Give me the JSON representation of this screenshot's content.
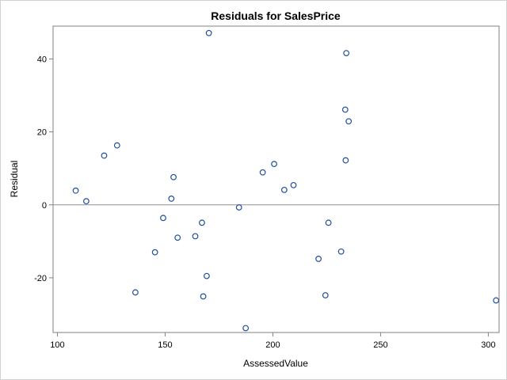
{
  "chart_data": {
    "type": "scatter",
    "title": "Residuals for SalesPrice",
    "xlabel": "AssessedValue",
    "ylabel": "Residual",
    "xlim": [
      98,
      305
    ],
    "ylim": [
      -35,
      49
    ],
    "xticks": [
      100,
      150,
      200,
      250,
      300
    ],
    "yticks": [
      -20,
      0,
      20,
      40
    ],
    "reference_line_y": 0,
    "grid": false,
    "colors": {
      "marker": "#1f4e9c",
      "reference": "#909090",
      "axis": "#808080"
    },
    "points": [
      {
        "x": 108.5,
        "y": 3.9
      },
      {
        "x": 113.4,
        "y": 1.0
      },
      {
        "x": 121.7,
        "y": 13.5
      },
      {
        "x": 127.7,
        "y": 16.3
      },
      {
        "x": 136.2,
        "y": -24.0
      },
      {
        "x": 145.3,
        "y": -13.0
      },
      {
        "x": 149.1,
        "y": -3.6
      },
      {
        "x": 152.9,
        "y": 1.7
      },
      {
        "x": 153.9,
        "y": 7.6
      },
      {
        "x": 155.8,
        "y": -9.0
      },
      {
        "x": 164.0,
        "y": -8.6
      },
      {
        "x": 167.1,
        "y": -4.9
      },
      {
        "x": 167.7,
        "y": -25.1
      },
      {
        "x": 169.3,
        "y": -19.5
      },
      {
        "x": 170.3,
        "y": 47.1
      },
      {
        "x": 184.3,
        "y": -0.7
      },
      {
        "x": 187.4,
        "y": -33.8
      },
      {
        "x": 195.3,
        "y": 8.9
      },
      {
        "x": 200.6,
        "y": 11.2
      },
      {
        "x": 205.3,
        "y": 4.1
      },
      {
        "x": 209.6,
        "y": 5.4
      },
      {
        "x": 221.2,
        "y": -14.8
      },
      {
        "x": 224.4,
        "y": -24.8
      },
      {
        "x": 225.8,
        "y": -4.9
      },
      {
        "x": 231.7,
        "y": -12.8
      },
      {
        "x": 233.6,
        "y": 26.1
      },
      {
        "x": 233.8,
        "y": 12.2
      },
      {
        "x": 234.1,
        "y": 41.6
      },
      {
        "x": 235.2,
        "y": 22.9
      },
      {
        "x": 303.6,
        "y": -26.2
      }
    ]
  }
}
